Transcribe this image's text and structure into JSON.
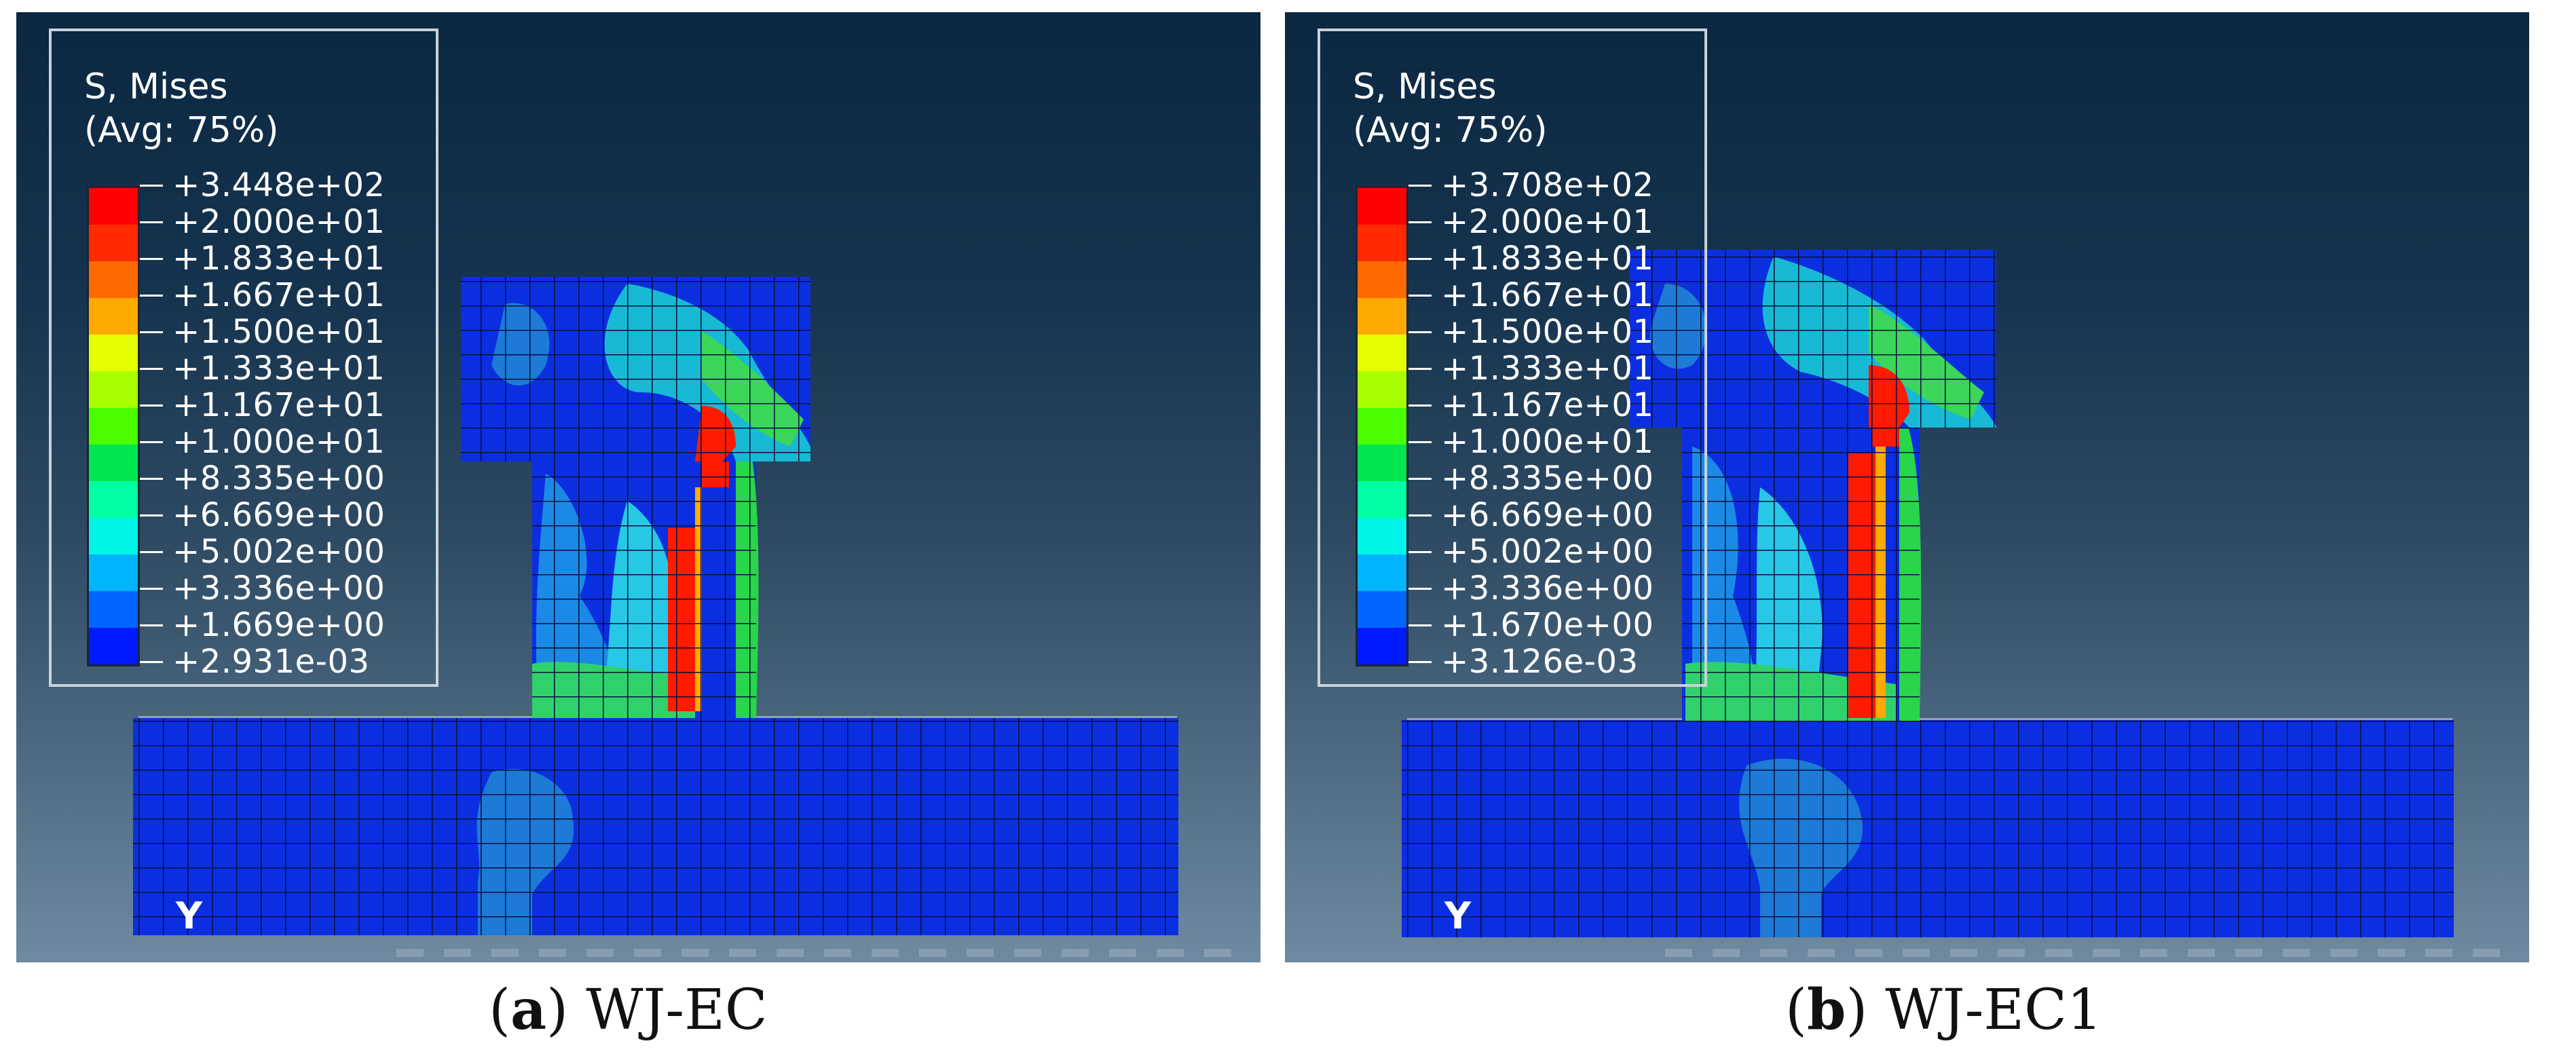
{
  "legend_colors": [
    "#ff0000",
    "#ff2a00",
    "#ff6a00",
    "#ffaa00",
    "#e6ff00",
    "#a8ff00",
    "#4bff00",
    "#00e650",
    "#00ffa2",
    "#00f5e8",
    "#00b4ff",
    "#0066ff",
    "#0019ff"
  ],
  "panels": [
    {
      "legend_title_1": "S, Mises",
      "legend_title_2": "(Avg: 75%)",
      "legend_values": [
        "+3.448e+02",
        "+2.000e+01",
        "+1.833e+01",
        "+1.667e+01",
        "+1.500e+01",
        "+1.333e+01",
        "+1.167e+01",
        "+1.000e+01",
        "+8.335e+00",
        "+6.669e+00",
        "+5.002e+00",
        "+3.336e+00",
        "+1.669e+00",
        "+2.931e-03"
      ],
      "axis_label": "Y",
      "caption_letter": "a",
      "caption_text": " WJ-EC"
    },
    {
      "legend_title_1": "S, Mises",
      "legend_title_2": "(Avg: 75%)",
      "legend_values": [
        "+3.708e+02",
        "+2.000e+01",
        "+1.833e+01",
        "+1.667e+01",
        "+1.500e+01",
        "+1.333e+01",
        "+1.167e+01",
        "+1.000e+01",
        "+8.335e+00",
        "+6.669e+00",
        "+5.002e+00",
        "+3.336e+00",
        "+1.670e+00",
        "+3.126e-03"
      ],
      "axis_label": "Y",
      "caption_letter": "b",
      "caption_text": " WJ-EC1"
    }
  ]
}
